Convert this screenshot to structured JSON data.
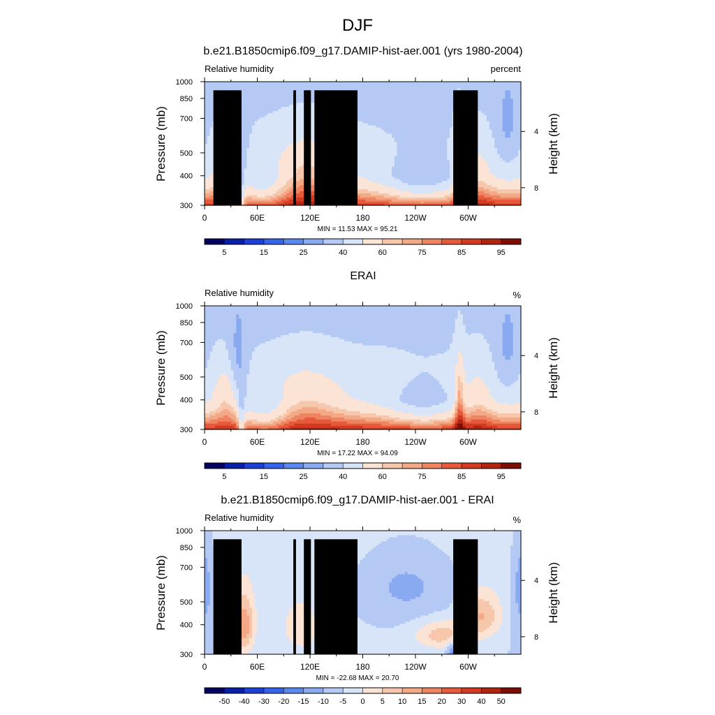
{
  "figure": {
    "title": "DJF"
  },
  "colors": {
    "absolute": [
      "#02035e",
      "#0a1fa8",
      "#1d3fd6",
      "#3563ea",
      "#5a88ee",
      "#89aaf0",
      "#b4c9f3",
      "#d8e4f7",
      "#fbe4d6",
      "#f7c7ac",
      "#f3a886",
      "#ee8460",
      "#e6593a",
      "#d23b21",
      "#b02510",
      "#7e0e04"
    ],
    "difference": [
      "#02035e",
      "#0a1fa8",
      "#1d3fd6",
      "#3563ea",
      "#5a88ee",
      "#89aaf0",
      "#b4c9f3",
      "#d8e4f7",
      "#fbe4d6",
      "#f7c7ac",
      "#f3a886",
      "#ee8460",
      "#e6593a",
      "#d23b21",
      "#b02510",
      "#7e0e04"
    ]
  },
  "chart_data": [
    {
      "type": "heatmap",
      "title": "b.e21.B1850cmip6.f09_g17.DAMIP-hist-aer.001 (yrs 1980-2004)",
      "left_label": "Relative humidity",
      "right_label": "percent",
      "ylabel": "Pressure (mb)",
      "ylabel_right": "Height (km)",
      "x_ticks": [
        "0",
        "60E",
        "120E",
        "180",
        "120W",
        "60W"
      ],
      "y_ticks": [
        "300",
        "400",
        "500",
        "700",
        "850",
        "1000"
      ],
      "y_right_ticks": [
        "8",
        "4"
      ],
      "min_max_text": "MIN =  11.53  MAX =  95.21",
      "colorbar_labels": [
        "5",
        "15",
        "25",
        "40",
        "60",
        "75",
        "85",
        "95"
      ],
      "levels": [
        5,
        10,
        15,
        20,
        25,
        30,
        40,
        50,
        60,
        65,
        70,
        75,
        80,
        85,
        90,
        95
      ],
      "xlim": [
        0,
        360
      ],
      "ylim": [
        1000,
        300
      ],
      "min": 11.53,
      "max": 95.21,
      "kind": "model",
      "colorbar": "absolute",
      "terrain": true
    },
    {
      "type": "heatmap",
      "title": "ERAI",
      "left_label": "Relative humidity",
      "right_label": "%",
      "ylabel": "Pressure (mb)",
      "ylabel_right": "Height (km)",
      "x_ticks": [
        "0",
        "60E",
        "120E",
        "180",
        "120W",
        "60W"
      ],
      "y_ticks": [
        "300",
        "400",
        "500",
        "700",
        "850",
        "1000"
      ],
      "y_right_ticks": [
        "8",
        "4"
      ],
      "min_max_text": "MIN =  17.22  MAX =  94.09",
      "colorbar_labels": [
        "5",
        "15",
        "25",
        "40",
        "60",
        "75",
        "85",
        "95"
      ],
      "levels": [
        5,
        10,
        15,
        20,
        25,
        30,
        40,
        50,
        60,
        65,
        70,
        75,
        80,
        85,
        90,
        95
      ],
      "xlim": [
        0,
        360
      ],
      "ylim": [
        1000,
        300
      ],
      "min": 17.22,
      "max": 94.09,
      "kind": "obs",
      "colorbar": "absolute",
      "terrain": false
    },
    {
      "type": "heatmap",
      "title": "b.e21.B1850cmip6.f09_g17.DAMIP-hist-aer.001 - ERAI",
      "left_label": "Relative humidity",
      "right_label": "%",
      "ylabel": "Pressure (mb)",
      "ylabel_right": "Height (km)",
      "x_ticks": [
        "0",
        "60E",
        "120E",
        "180",
        "120W",
        "60W"
      ],
      "y_ticks": [
        "300",
        "400",
        "500",
        "700",
        "850",
        "1000"
      ],
      "y_right_ticks": [
        "8",
        "4"
      ],
      "min_max_text": "MIN = -22.68  MAX =  20.70",
      "colorbar_labels": [
        "-50",
        "-40",
        "-30",
        "-20",
        "-15",
        "-10",
        "-5",
        "0",
        "5",
        "10",
        "15",
        "20",
        "30",
        "40",
        "50"
      ],
      "levels": [
        -50,
        -40,
        -30,
        -20,
        -15,
        -10,
        -5,
        0,
        5,
        10,
        15,
        20,
        30,
        40,
        50
      ],
      "xlim": [
        0,
        360
      ],
      "ylim": [
        1000,
        300
      ],
      "min": -22.68,
      "max": 20.7,
      "kind": "diff",
      "colorbar": "difference",
      "terrain": true
    }
  ]
}
